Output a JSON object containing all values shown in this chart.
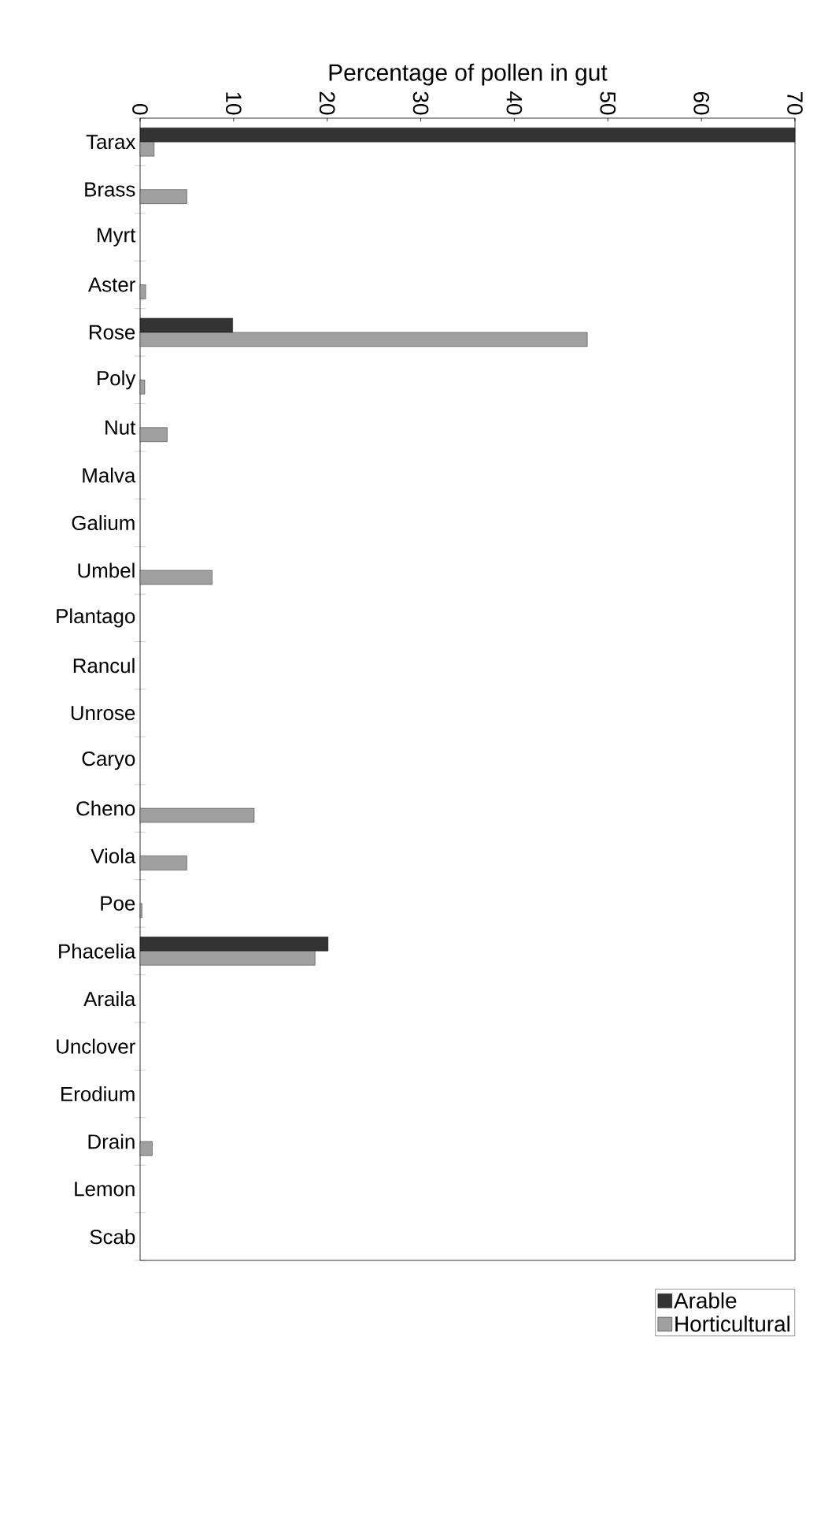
{
  "chart_data": {
    "type": "bar",
    "orientation": "horizontal",
    "xlabel": "Percentage of pollen in gut",
    "categories": [
      "Tarax",
      "Brass",
      "Myrt",
      "Aster",
      "Rose",
      "Poly",
      "Nut",
      "Malva",
      "Galium",
      "Umbel",
      "Plantago",
      "Rancul",
      "Unrose",
      "Caryo",
      "Cheno",
      "Viola",
      "Poe",
      "Phacelia",
      "Araila",
      "Unclover",
      "Erodium",
      "Drain",
      "Lemon",
      "Scab"
    ],
    "series": [
      {
        "name": "Arable",
        "color": "#333333",
        "values": [
          70,
          null,
          null,
          null,
          9.9,
          null,
          null,
          null,
          null,
          null,
          null,
          null,
          null,
          null,
          null,
          null,
          null,
          20.1,
          null,
          null,
          null,
          null,
          null,
          null
        ]
      },
      {
        "name": "Horticultural",
        "color": "#a0a0a0",
        "values": [
          1.5,
          5,
          null,
          0.6,
          47.8,
          0.5,
          2.9,
          null,
          null,
          7.7,
          null,
          null,
          null,
          null,
          12.2,
          5,
          0.2,
          18.7,
          null,
          null,
          null,
          1.3,
          null,
          null
        ]
      }
    ],
    "xlim": [
      0,
      70
    ],
    "xticks": [
      0,
      10,
      20,
      30,
      40,
      50,
      60,
      70
    ],
    "legend": "bottom right",
    "grid": false
  }
}
